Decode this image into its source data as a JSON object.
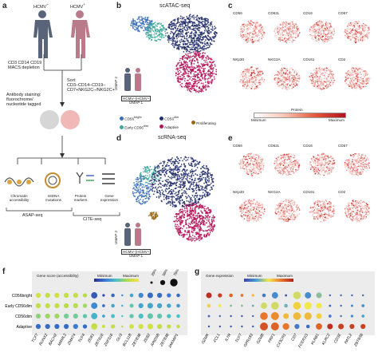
{
  "panels": {
    "a": {
      "label": "a",
      "donor_left": "HCMV",
      "donor_left_sup": "–",
      "donor_right": "HCMV",
      "donor_right_sup": "+",
      "step1": [
        "CD3 CD14 CD19",
        "MACS depletion"
      ],
      "step2": [
        "Antibody staining:",
        "fluorochrome/",
        "nucleotide tagged"
      ],
      "sort_lines": [
        "Sort:",
        "CD3–CD14–CD19–",
        "CD7+NKG2C–/NKG2C+"
      ],
      "outputs": [
        {
          "name": "Chromatin accessibility",
          "lines": [
            "Chromatin",
            "accessibility"
          ]
        },
        {
          "name": "mtDNA mutations",
          "lines": [
            "mtDNA",
            "mutations"
          ]
        },
        {
          "name": "Protein markers",
          "lines": [
            "Protein",
            "markers"
          ]
        },
        {
          "name": "Gene expression",
          "lines": [
            "Gene",
            "expression"
          ]
        }
      ],
      "asap": "ASAP-seq",
      "cite": "CITE-seq"
    },
    "b": {
      "label": "b",
      "title": "scATAC-seq",
      "umap1": "UMAP 1",
      "umap2": "UMAP 2",
      "donors": "HCMV–|HCMV+"
    },
    "c": {
      "label": "c",
      "markers_row1": [
        "CD56",
        "CD62L",
        "CD16",
        "CD57"
      ],
      "markers_row2": [
        "NKp30",
        "NKG2A",
        "CD161",
        "CD2"
      ],
      "colorbar_title": "Protein",
      "colorbar_min": "Minimum",
      "colorbar_max": "Maximum"
    },
    "legend": {
      "items": [
        {
          "name": "CD56",
          "sup": "bright",
          "color": "#3b6fb6"
        },
        {
          "name": "CD56",
          "sup": "dim",
          "color": "#25306b"
        },
        {
          "name": "Proliferating",
          "sup": "",
          "color": "#9b6a1a"
        },
        {
          "name": "Early CD56",
          "sup": "dim",
          "color": "#3fa89a"
        },
        {
          "name": "Adaptive",
          "sup": "",
          "color": "#b3165a"
        }
      ]
    },
    "d": {
      "label": "d",
      "title": "scRNA-seq",
      "umap1": "UMAP 1",
      "umap2": "UMAP 2",
      "donors": "HCMV–|HCMV+"
    },
    "e": {
      "label": "e",
      "markers_row1": [
        "CD56",
        "CD62L",
        "CD16",
        "CD57"
      ],
      "markers_row2": [
        "NKp30",
        "NKG2A",
        "CD161",
        "CD2"
      ]
    },
    "f": {
      "label": "f",
      "legend_title": "Gene score (accessibility)",
      "legend_min": "Minimum",
      "legend_max": "Maximum",
      "size_labels": [
        "25%",
        "50%",
        "75%"
      ],
      "rows": [
        "CD56bright",
        "Early CD56dim",
        "CD56dim",
        "Adaptive"
      ],
      "genes": [
        "TCF7",
        "RUNX2",
        "BACH2",
        "MAML3",
        "ZMAT4",
        "TCF4",
        "ZEB1",
        "ZBTB16",
        "ZNF516",
        "GLI3",
        "BCL11B",
        "ZBTB38",
        "ZEB2",
        "ARID5B",
        "ZBTB38",
        "JAKMIP1"
      ]
    },
    "g": {
      "label": "g",
      "legend_title": "Gene expression",
      "legend_min": "Minimum",
      "legend_max": "Maximum",
      "genes": [
        "GZMK",
        "XCL1",
        "IL7R",
        "TCF7",
        "GPR183",
        "GZMB",
        "PRF1",
        "CX3CR1",
        "CD7",
        "FCER1G",
        "KLRB1",
        "KLRC2",
        "CD3E",
        "PATL2",
        "ZBTB38"
      ]
    }
  },
  "colors": {
    "cd56bright": "#3b6fb6",
    "early": "#3fa89a",
    "cd56dim": "#25306b",
    "adaptive": "#b3165a",
    "proliferating": "#9b6a1a",
    "donor_neg": "#5a6478",
    "donor_pos": "#b97a8a"
  },
  "chart_data": [
    {
      "type": "scatter",
      "title": "Gene score (accessibility)",
      "rows": [
        "CD56bright",
        "Early CD56dim",
        "CD56dim",
        "Adaptive"
      ],
      "categories": [
        "TCF7",
        "RUNX2",
        "BACH2",
        "MAML3",
        "ZMAT4",
        "TCF4",
        "ZEB1",
        "ZBTB16",
        "ZNF516",
        "GLI3",
        "BCL11B",
        "ZBTB38",
        "ZEB2",
        "ARID5B",
        "ZBTB38",
        "JAKMIP1"
      ],
      "score": [
        [
          0.85,
          0.8,
          0.85,
          0.8,
          0.8,
          0.75,
          0.15,
          0.1,
          0.2,
          0.3,
          0.4,
          0.3,
          0.2,
          0.2,
          0.25,
          0.2
        ],
        [
          0.8,
          0.8,
          0.8,
          0.75,
          0.75,
          0.7,
          0.3,
          0.2,
          0.4,
          0.4,
          0.55,
          0.4,
          0.4,
          0.4,
          0.4,
          0.35
        ],
        [
          0.65,
          0.7,
          0.7,
          0.6,
          0.6,
          0.55,
          0.45,
          0.4,
          0.5,
          0.5,
          0.55,
          0.5,
          0.55,
          0.55,
          0.5,
          0.5
        ],
        [
          0.2,
          0.2,
          0.2,
          0.2,
          0.25,
          0.2,
          0.8,
          0.85,
          0.8,
          0.75,
          0.85,
          0.85,
          0.85,
          0.8,
          0.8,
          0.8
        ]
      ],
      "pct": [
        [
          0.5,
          0.5,
          0.5,
          0.5,
          0.5,
          0.4,
          0.7,
          0.15,
          0.3,
          0.05,
          0.3,
          0.5,
          0.6,
          0.5,
          0.4,
          0.3
        ],
        [
          0.5,
          0.5,
          0.5,
          0.5,
          0.5,
          0.4,
          0.7,
          0.2,
          0.3,
          0.05,
          0.35,
          0.5,
          0.6,
          0.5,
          0.4,
          0.3
        ],
        [
          0.5,
          0.5,
          0.5,
          0.5,
          0.5,
          0.4,
          0.7,
          0.2,
          0.35,
          0.05,
          0.4,
          0.5,
          0.6,
          0.5,
          0.4,
          0.3
        ],
        [
          0.5,
          0.5,
          0.5,
          0.5,
          0.5,
          0.4,
          0.7,
          0.25,
          0.4,
          0.05,
          0.45,
          0.5,
          0.6,
          0.5,
          0.4,
          0.3
        ]
      ]
    },
    {
      "type": "scatter",
      "title": "Gene expression",
      "rows": [
        "CD56bright",
        "Early CD56dim",
        "CD56dim",
        "Adaptive"
      ],
      "categories": [
        "GZMK",
        "XCL1",
        "IL7R",
        "TCF7",
        "GPR183",
        "GZMB",
        "PRF1",
        "CX3CR1",
        "CD7",
        "FCER1G",
        "KLRB1",
        "KLRC2",
        "CD3E",
        "PATL2",
        "ZBTB38"
      ],
      "score": [
        [
          0.95,
          0.9,
          0.8,
          0.75,
          0.6,
          0.15,
          0.2,
          0.05,
          0.45,
          0.2,
          0.35,
          0.1,
          0.1,
          0.1,
          0.1
        ],
        [
          0.55,
          0.5,
          0.35,
          0.35,
          0.3,
          0.45,
          0.45,
          0.3,
          0.55,
          0.5,
          0.5,
          0.1,
          0.1,
          0.15,
          0.2
        ],
        [
          0.1,
          0.1,
          0.05,
          0.05,
          0.1,
          0.75,
          0.7,
          0.6,
          0.6,
          0.6,
          0.55,
          0.15,
          0.1,
          0.2,
          0.25
        ],
        [
          0.05,
          0.05,
          0.05,
          0.05,
          0.05,
          0.85,
          0.8,
          0.75,
          0.15,
          0.1,
          0.8,
          0.95,
          0.9,
          0.9,
          0.9
        ]
      ],
      "pct": [
        [
          0.6,
          0.4,
          0.3,
          0.2,
          0.15,
          0.3,
          0.7,
          0.1,
          0.9,
          0.7,
          0.6,
          0.05,
          0.05,
          0.05,
          0.05
        ],
        [
          0.3,
          0.2,
          0.1,
          0.1,
          0.1,
          0.7,
          0.9,
          0.3,
          0.9,
          0.85,
          0.6,
          0.1,
          0.05,
          0.1,
          0.2
        ],
        [
          0.1,
          0.05,
          0.05,
          0.05,
          0.05,
          0.9,
          0.95,
          0.6,
          0.9,
          0.85,
          0.6,
          0.2,
          0.05,
          0.15,
          0.2
        ],
        [
          0.05,
          0.05,
          0.05,
          0.05,
          0.05,
          0.95,
          0.95,
          0.75,
          0.5,
          0.3,
          0.7,
          0.6,
          0.6,
          0.5,
          0.5
        ]
      ]
    }
  ]
}
